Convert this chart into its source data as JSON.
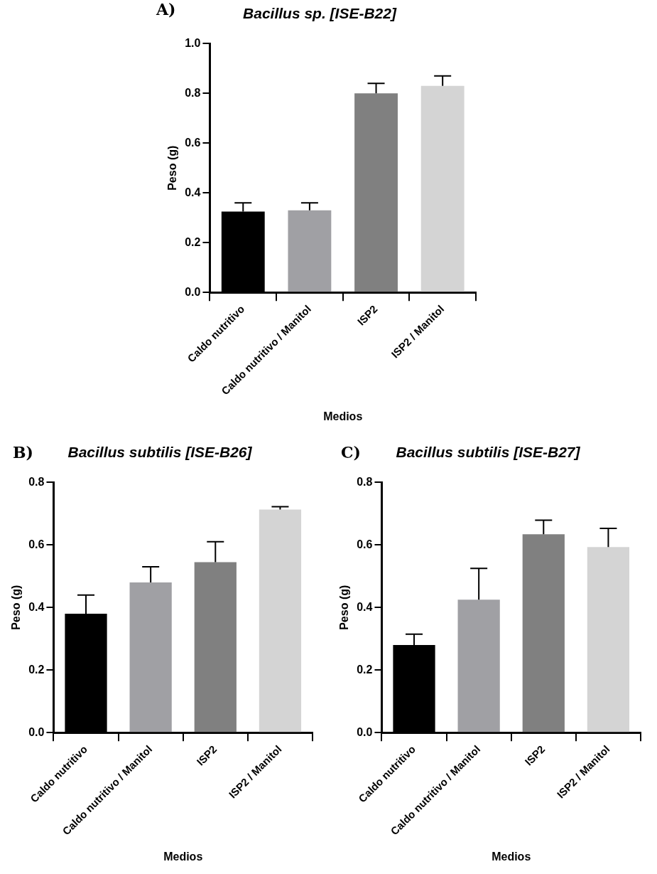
{
  "chart_data": [
    {
      "type": "bar",
      "title": "Bacillus sp. [ISE-B22]",
      "xlabel": "Medios",
      "ylabel": "Peso (g)",
      "annotations": [
        "A)"
      ],
      "categories": [
        "Caldo nutritivo",
        "Caldo nutritivo / Manitol",
        "ISP2",
        "ISP2 / Manitol"
      ],
      "values": [
        0.325,
        0.33,
        0.8,
        0.83
      ],
      "errors": [
        0.035,
        0.03,
        0.04,
        0.04
      ],
      "colors": [
        "#000000",
        "#a0a0a4",
        "#808080",
        "#d4d4d4"
      ],
      "ylim": [
        0,
        1.0
      ],
      "yticks": [
        {
          "value": 0,
          "label": "0.0"
        },
        {
          "value": 0.2,
          "label": "0.2"
        },
        {
          "value": 0.4,
          "label": "0.4"
        },
        {
          "value": 0.6,
          "label": "0.6"
        },
        {
          "value": 0.8,
          "label": "0.8"
        },
        {
          "value": 1.0,
          "label": "1.0"
        }
      ],
      "grid": false,
      "legend": false
    },
    {
      "type": "bar",
      "title": "Bacillus subtilis [ISE-B26]",
      "xlabel": "Medios",
      "ylabel": "Peso (g)",
      "annotations": [
        "B)"
      ],
      "categories": [
        "Caldo nutritivo",
        "Caldo nutritivo / Manitol",
        "ISP2",
        "ISP2 / Manitol"
      ],
      "values": [
        0.38,
        0.48,
        0.545,
        0.713
      ],
      "errors": [
        0.06,
        0.05,
        0.065,
        0.009
      ],
      "colors": [
        "#000000",
        "#a0a0a4",
        "#808080",
        "#d4d4d4"
      ],
      "ylim": [
        0,
        0.8
      ],
      "yticks": [
        {
          "value": 0,
          "label": "0.0"
        },
        {
          "value": 0.2,
          "label": "0.2"
        },
        {
          "value": 0.4,
          "label": "0.4"
        },
        {
          "value": 0.6,
          "label": "0.6"
        },
        {
          "value": 0.8,
          "label": "0.8"
        }
      ],
      "grid": false,
      "legend": false
    },
    {
      "type": "bar",
      "title": "Bacillus subtilis [ISE-B27]",
      "xlabel": "Medios",
      "ylabel": "Peso (g)",
      "annotations": [
        "C)"
      ],
      "categories": [
        "Caldo nutritivo",
        "Caldo nutritivo / Manitol",
        "ISP2",
        "ISP2 / Manitol"
      ],
      "values": [
        0.28,
        0.425,
        0.634,
        0.593
      ],
      "errors": [
        0.035,
        0.1,
        0.045,
        0.06
      ],
      "colors": [
        "#000000",
        "#a0a0a4",
        "#808080",
        "#d4d4d4"
      ],
      "ylim": [
        0,
        0.8
      ],
      "yticks": [
        {
          "value": 0,
          "label": "0.0"
        },
        {
          "value": 0.2,
          "label": "0.2"
        },
        {
          "value": 0.4,
          "label": "0.4"
        },
        {
          "value": 0.6,
          "label": "0.6"
        },
        {
          "value": 0.8,
          "label": "0.8"
        }
      ],
      "grid": false,
      "legend": false
    }
  ]
}
